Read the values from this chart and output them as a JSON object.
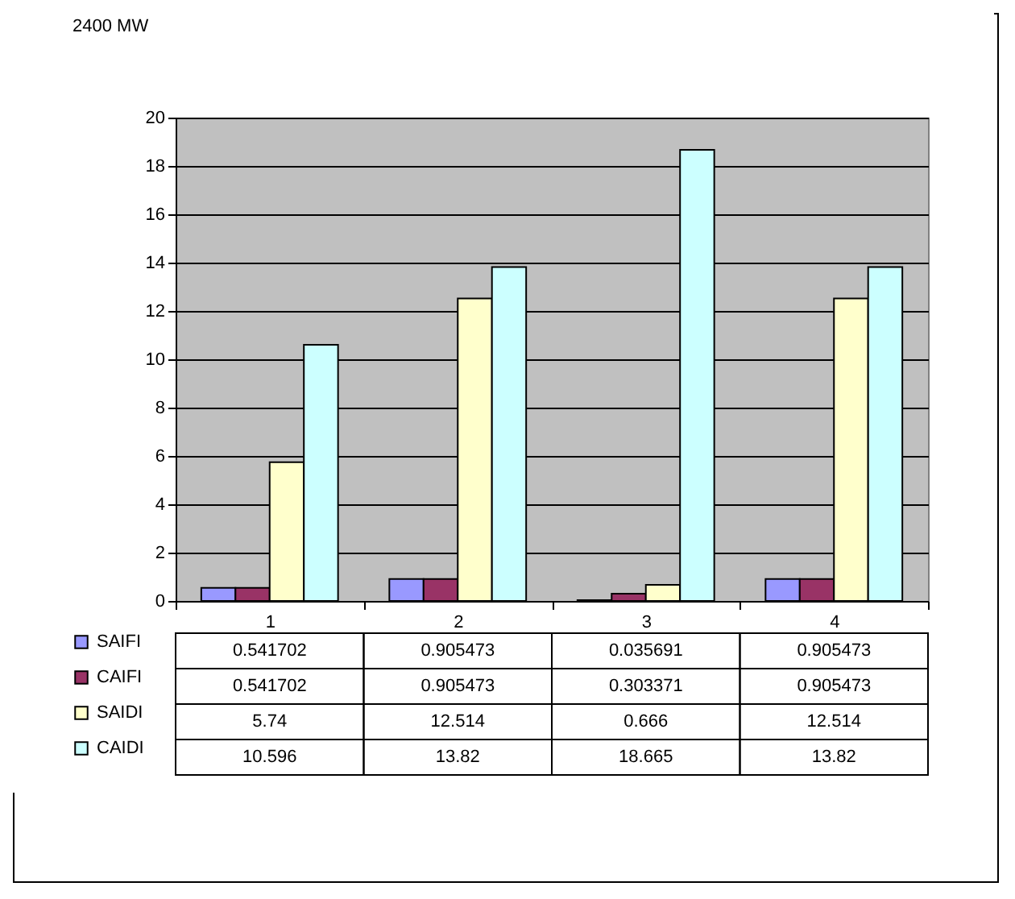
{
  "chart_data": {
    "type": "bar",
    "title": "2400 MW",
    "categories": [
      "1",
      "2",
      "3",
      "4"
    ],
    "series": [
      {
        "name": "SAIFI",
        "color": "#9999ff",
        "values": [
          0.541702,
          0.905473,
          0.035691,
          0.905473
        ]
      },
      {
        "name": "CAIFI",
        "color": "#993366",
        "values": [
          0.541702,
          0.905473,
          0.303371,
          0.905473
        ]
      },
      {
        "name": "SAIDI",
        "color": "#ffffcc",
        "values": [
          5.74,
          12.514,
          0.666,
          12.514
        ]
      },
      {
        "name": "CAIDI",
        "color": "#ccffff",
        "values": [
          10.596,
          13.82,
          18.665,
          13.82
        ]
      }
    ],
    "ylim": [
      0,
      20
    ],
    "yticks": [
      0,
      2,
      4,
      6,
      8,
      10,
      12,
      14,
      16,
      18,
      20
    ],
    "grid": "y",
    "legend": "bottom left",
    "data_labels": true
  }
}
